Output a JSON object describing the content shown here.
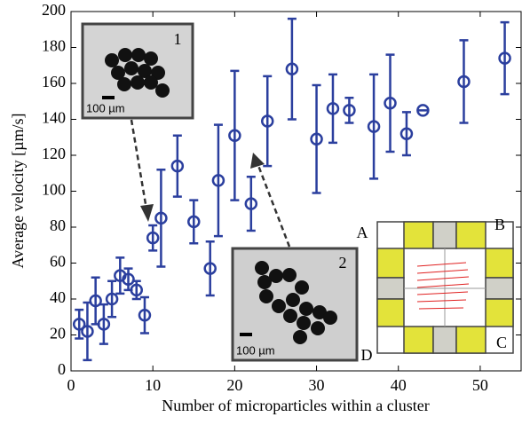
{
  "chart_data": {
    "type": "errorbar",
    "x_label": "Number of microparticles within a cluster",
    "y_label": "Average velocity [µm/s]",
    "x": [
      1,
      2,
      3,
      4,
      5,
      6,
      7,
      8,
      9,
      10,
      11,
      13,
      15,
      17,
      18,
      20,
      22,
      24,
      27,
      30,
      32,
      34,
      37,
      39,
      41,
      43,
      48,
      53
    ],
    "values": [
      26,
      22,
      39,
      26,
      40,
      53,
      51,
      45,
      31,
      74,
      85,
      114,
      83,
      57,
      106,
      131,
      93,
      139,
      168,
      129,
      146,
      145,
      136,
      149,
      132,
      145,
      161,
      174
    ],
    "errors": [
      8,
      16,
      13,
      11,
      10,
      10,
      6,
      5,
      10,
      7,
      27,
      17,
      12,
      15,
      31,
      36,
      15,
      25,
      28,
      30,
      19,
      7,
      29,
      27,
      12,
      0,
      23,
      20
    ],
    "color": "#2b3f9e",
    "xlim": [
      0,
      55
    ],
    "xticks": [
      0,
      10,
      20,
      30,
      40,
      50
    ],
    "ylim": [
      0,
      200
    ],
    "yticks": [
      0,
      20,
      40,
      60,
      80,
      100,
      120,
      140,
      160,
      180,
      200
    ],
    "annotations": [
      "1",
      "100 µm",
      "2",
      "100 µm",
      "A",
      "B",
      "C",
      "D"
    ]
  }
}
